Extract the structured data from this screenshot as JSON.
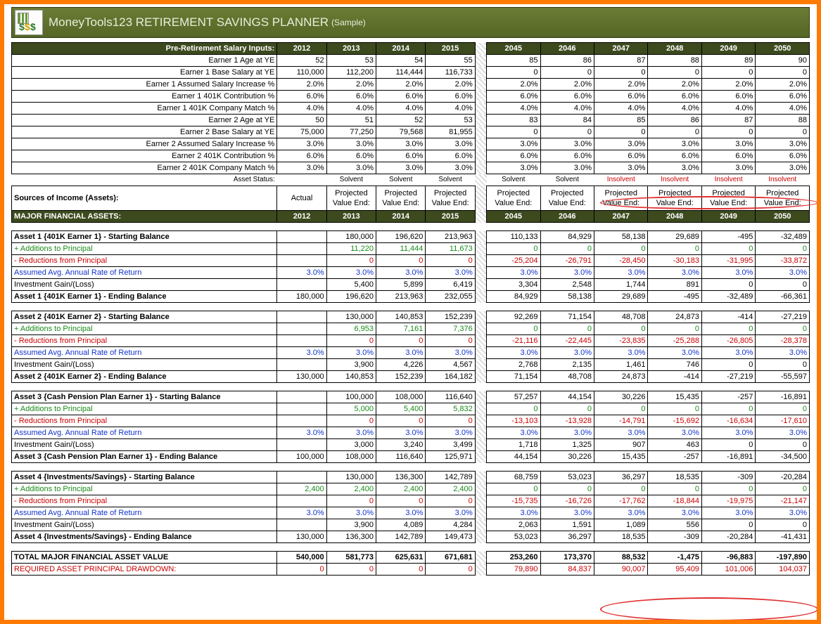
{
  "title_main": "MoneyTools123 RETIREMENT SAVINGS PLANNER",
  "title_suffix": "(Sample)",
  "years_a": [
    "2012",
    "2013",
    "2014",
    "2015"
  ],
  "years_b": [
    "2045",
    "2046",
    "2047",
    "2048",
    "2049",
    "2050"
  ],
  "salary_header": "Pre-Retirement Salary Inputs:",
  "salary_rows": [
    {
      "l": "Earner 1 Age at YE",
      "a": [
        "52",
        "53",
        "54",
        "55"
      ],
      "b": [
        "85",
        "86",
        "87",
        "88",
        "89",
        "90"
      ]
    },
    {
      "l": "Earner 1 Base Salary at YE",
      "a": [
        "110,000",
        "112,200",
        "114,444",
        "116,733"
      ],
      "b": [
        "0",
        "0",
        "0",
        "0",
        "0",
        "0"
      ]
    },
    {
      "l": "Earner 1 Assumed Salary Increase %",
      "a": [
        "2.0%",
        "2.0%",
        "2.0%",
        "2.0%"
      ],
      "b": [
        "2.0%",
        "2.0%",
        "2.0%",
        "2.0%",
        "2.0%",
        "2.0%"
      ]
    },
    {
      "l": "Earner 1 401K Contribution %",
      "a": [
        "6.0%",
        "6.0%",
        "6.0%",
        "6.0%"
      ],
      "b": [
        "6.0%",
        "6.0%",
        "6.0%",
        "6.0%",
        "6.0%",
        "6.0%"
      ]
    },
    {
      "l": "Earner 1 401K Company Match %",
      "a": [
        "4.0%",
        "4.0%",
        "4.0%",
        "4.0%"
      ],
      "b": [
        "4.0%",
        "4.0%",
        "4.0%",
        "4.0%",
        "4.0%",
        "4.0%"
      ]
    },
    {
      "l": "Earner 2 Age at YE",
      "a": [
        "50",
        "51",
        "52",
        "53"
      ],
      "b": [
        "83",
        "84",
        "85",
        "86",
        "87",
        "88"
      ]
    },
    {
      "l": "Earner 2 Base Salary at YE",
      "a": [
        "75,000",
        "77,250",
        "79,568",
        "81,955"
      ],
      "b": [
        "0",
        "0",
        "0",
        "0",
        "0",
        "0"
      ]
    },
    {
      "l": "Earner 2 Assumed Salary Increase %",
      "a": [
        "3.0%",
        "3.0%",
        "3.0%",
        "3.0%"
      ],
      "b": [
        "3.0%",
        "3.0%",
        "3.0%",
        "3.0%",
        "3.0%",
        "3.0%"
      ]
    },
    {
      "l": "Earner 2 401K Contribution %",
      "a": [
        "6.0%",
        "6.0%",
        "6.0%",
        "6.0%"
      ],
      "b": [
        "6.0%",
        "6.0%",
        "6.0%",
        "6.0%",
        "6.0%",
        "6.0%"
      ]
    },
    {
      "l": "Earner 2 401K Company Match %",
      "a": [
        "3.0%",
        "3.0%",
        "3.0%",
        "3.0%"
      ],
      "b": [
        "3.0%",
        "3.0%",
        "3.0%",
        "3.0%",
        "3.0%",
        "3.0%"
      ]
    }
  ],
  "status_label": "Asset Status:",
  "status_a": [
    "",
    "Solvent",
    "Solvent",
    "Solvent"
  ],
  "status_b": [
    "Solvent",
    "Solvent",
    "Insolvent",
    "Insolvent",
    "Insolvent",
    "Insolvent"
  ],
  "src_label": "Sources of Income (Assets):",
  "actual": "Actual",
  "proj": "Projected Value End:",
  "major_label": "MAJOR FINANCIAL ASSETS:",
  "assets": [
    {
      "name": "Asset 1 {401K Earner 1}",
      "sb": {
        "a": [
          "",
          "180,000",
          "196,620",
          "213,963"
        ],
        "b": [
          "110,133",
          "84,929",
          "58,138",
          "29,689",
          "-495",
          "-32,489"
        ]
      },
      "add": {
        "a": [
          "",
          "11,220",
          "11,444",
          "11,673"
        ],
        "b": [
          "0",
          "0",
          "0",
          "0",
          "0",
          "0"
        ]
      },
      "red": {
        "a": [
          "",
          "0",
          "0",
          "0"
        ],
        "b": [
          "-25,204",
          "-26,791",
          "-28,450",
          "-30,183",
          "-31,995",
          "-33,872"
        ]
      },
      "ror": {
        "a": [
          "3.0%",
          "3.0%",
          "3.0%",
          "3.0%"
        ],
        "b": [
          "3.0%",
          "3.0%",
          "3.0%",
          "3.0%",
          "3.0%",
          "3.0%"
        ]
      },
      "gl": {
        "a": [
          "",
          "5,400",
          "5,899",
          "6,419"
        ],
        "b": [
          "3,304",
          "2,548",
          "1,744",
          "891",
          "0",
          "0"
        ]
      },
      "eb": {
        "a": [
          "180,000",
          "196,620",
          "213,963",
          "232,055"
        ],
        "b": [
          "84,929",
          "58,138",
          "29,689",
          "-495",
          "-32,489",
          "-66,361"
        ]
      }
    },
    {
      "name": "Asset 2 {401K Earner 2}",
      "sb": {
        "a": [
          "",
          "130,000",
          "140,853",
          "152,239"
        ],
        "b": [
          "92,269",
          "71,154",
          "48,708",
          "24,873",
          "-414",
          "-27,219"
        ]
      },
      "add": {
        "a": [
          "",
          "6,953",
          "7,161",
          "7,376"
        ],
        "b": [
          "0",
          "0",
          "0",
          "0",
          "0",
          "0"
        ]
      },
      "red": {
        "a": [
          "",
          "0",
          "0",
          "0"
        ],
        "b": [
          "-21,116",
          "-22,445",
          "-23,835",
          "-25,288",
          "-26,805",
          "-28,378"
        ]
      },
      "ror": {
        "a": [
          "3.0%",
          "3.0%",
          "3.0%",
          "3.0%"
        ],
        "b": [
          "3.0%",
          "3.0%",
          "3.0%",
          "3.0%",
          "3.0%",
          "3.0%"
        ]
      },
      "gl": {
        "a": [
          "",
          "3,900",
          "4,226",
          "4,567"
        ],
        "b": [
          "2,768",
          "2,135",
          "1,461",
          "746",
          "0",
          "0"
        ]
      },
      "eb": {
        "a": [
          "130,000",
          "140,853",
          "152,239",
          "164,182"
        ],
        "b": [
          "71,154",
          "48,708",
          "24,873",
          "-414",
          "-27,219",
          "-55,597"
        ]
      }
    },
    {
      "name": "Asset 3 {Cash Pension Plan Earner 1}",
      "sb": {
        "a": [
          "",
          "100,000",
          "108,000",
          "116,640"
        ],
        "b": [
          "57,257",
          "44,154",
          "30,226",
          "15,435",
          "-257",
          "-16,891"
        ]
      },
      "add": {
        "a": [
          "",
          "5,000",
          "5,400",
          "5,832"
        ],
        "b": [
          "0",
          "0",
          "0",
          "0",
          "0",
          "0"
        ]
      },
      "red": {
        "a": [
          "",
          "0",
          "0",
          "0"
        ],
        "b": [
          "-13,103",
          "-13,928",
          "-14,791",
          "-15,692",
          "-16,634",
          "-17,610"
        ]
      },
      "ror": {
        "a": [
          "3.0%",
          "3.0%",
          "3.0%",
          "3.0%"
        ],
        "b": [
          "3.0%",
          "3.0%",
          "3.0%",
          "3.0%",
          "3.0%",
          "3.0%"
        ]
      },
      "gl": {
        "a": [
          "",
          "3,000",
          "3,240",
          "3,499"
        ],
        "b": [
          "1,718",
          "1,325",
          "907",
          "463",
          "0",
          "0"
        ]
      },
      "eb": {
        "a": [
          "100,000",
          "108,000",
          "116,640",
          "125,971"
        ],
        "b": [
          "44,154",
          "30,226",
          "15,435",
          "-257",
          "-16,891",
          "-34,500"
        ]
      }
    },
    {
      "name": "Asset 4 {Investments/Savings}",
      "sb": {
        "a": [
          "",
          "130,000",
          "136,300",
          "142,789"
        ],
        "b": [
          "68,759",
          "53,023",
          "36,297",
          "18,535",
          "-309",
          "-20,284"
        ]
      },
      "add": {
        "a": [
          "2,400",
          "2,400",
          "2,400",
          "2,400"
        ],
        "b": [
          "0",
          "0",
          "0",
          "0",
          "0",
          "0"
        ]
      },
      "red": {
        "a": [
          "",
          "0",
          "0",
          "0"
        ],
        "b": [
          "-15,735",
          "-16,726",
          "-17,762",
          "-18,844",
          "-19,975",
          "-21,147"
        ]
      },
      "ror": {
        "a": [
          "3.0%",
          "3.0%",
          "3.0%",
          "3.0%"
        ],
        "b": [
          "3.0%",
          "3.0%",
          "3.0%",
          "3.0%",
          "3.0%",
          "3.0%"
        ]
      },
      "gl": {
        "a": [
          "",
          "3,900",
          "4,089",
          "4,284"
        ],
        "b": [
          "2,063",
          "1,591",
          "1,089",
          "556",
          "0",
          "0"
        ]
      },
      "eb": {
        "a": [
          "130,000",
          "136,300",
          "142,789",
          "149,473"
        ],
        "b": [
          "53,023",
          "36,297",
          "18,535",
          "-309",
          "-20,284",
          "-41,431"
        ]
      }
    }
  ],
  "row_labels": {
    "start": " - Starting Balance",
    "add": "+ Additions to Principal",
    "red": "- Reductions from Principal",
    "ror": "Assumed Avg. Annual Rate of Return",
    "gl": "Investment Gain/(Loss)",
    "end": " - Ending Balance"
  },
  "total_label": "TOTAL MAJOR FINANCIAL ASSET VALUE",
  "total": {
    "a": [
      "540,000",
      "581,773",
      "625,631",
      "671,681"
    ],
    "b": [
      "253,260",
      "173,370",
      "88,532",
      "-1,475",
      "-96,883",
      "-197,890"
    ]
  },
  "drawdown_label": "REQUIRED ASSET PRINCIPAL DRAWDOWN:",
  "drawdown": {
    "a": [
      "0",
      "0",
      "0",
      "0"
    ],
    "b": [
      "79,890",
      "84,837",
      "90,007",
      "95,409",
      "101,006",
      "104,037"
    ]
  },
  "colors": {
    "header_bg": "#3c4a1e",
    "frame": "#ff7a00",
    "green": "#1a8a1a",
    "red": "#cc0000",
    "blue": "#1133cc"
  }
}
